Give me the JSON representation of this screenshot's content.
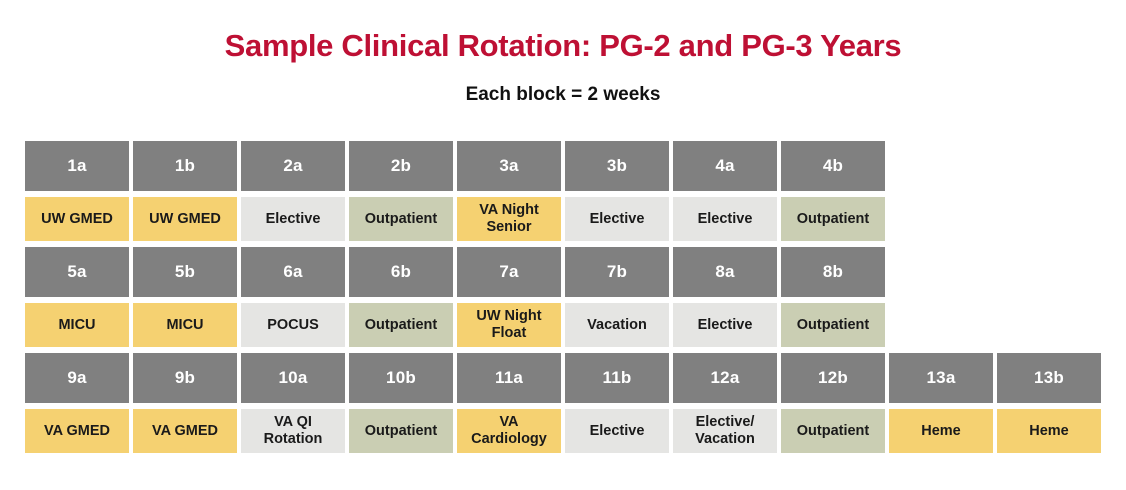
{
  "colors": {
    "title": "#BE1034",
    "subtitle_text": "#111111",
    "header_bg": "#808080",
    "header_text": "#FFFFFF",
    "cell_text": "#1A1A1A",
    "cell_fill": {
      "yellow": "#F5D171",
      "gray": "#E5E5E3",
      "green": "#CACEB3"
    }
  },
  "chart_data": {
    "type": "table",
    "title": "Sample Clinical Rotation: PG-2 and PG-3 Years",
    "subtitle": "Each block = 2 weeks",
    "legend_position": "none",
    "rows": [
      [
        {
          "block": "1a",
          "rotation": "UW GMED",
          "color": "yellow"
        },
        {
          "block": "1b",
          "rotation": "UW GMED",
          "color": "yellow"
        },
        {
          "block": "2a",
          "rotation": "Elective",
          "color": "gray"
        },
        {
          "block": "2b",
          "rotation": "Outpatient",
          "color": "green"
        },
        {
          "block": "3a",
          "rotation": "VA Night Senior",
          "color": "yellow"
        },
        {
          "block": "3b",
          "rotation": "Elective",
          "color": "gray"
        },
        {
          "block": "4a",
          "rotation": "Elective",
          "color": "gray"
        },
        {
          "block": "4b",
          "rotation": "Outpatient",
          "color": "green"
        }
      ],
      [
        {
          "block": "5a",
          "rotation": "MICU",
          "color": "yellow"
        },
        {
          "block": "5b",
          "rotation": "MICU",
          "color": "yellow"
        },
        {
          "block": "6a",
          "rotation": "POCUS",
          "color": "gray"
        },
        {
          "block": "6b",
          "rotation": "Outpatient",
          "color": "green"
        },
        {
          "block": "7a",
          "rotation": "UW Night Float",
          "color": "yellow"
        },
        {
          "block": "7b",
          "rotation": "Vacation",
          "color": "gray"
        },
        {
          "block": "8a",
          "rotation": "Elective",
          "color": "gray"
        },
        {
          "block": "8b",
          "rotation": "Outpatient",
          "color": "green"
        }
      ],
      [
        {
          "block": "9a",
          "rotation": "VA GMED",
          "color": "yellow"
        },
        {
          "block": "9b",
          "rotation": "VA GMED",
          "color": "yellow"
        },
        {
          "block": "10a",
          "rotation": "VA QI Rotation",
          "color": "gray"
        },
        {
          "block": "10b",
          "rotation": "Outpatient",
          "color": "green"
        },
        {
          "block": "11a",
          "rotation": "VA Cardiology",
          "color": "yellow"
        },
        {
          "block": "11b",
          "rotation": "Elective",
          "color": "gray"
        },
        {
          "block": "12a",
          "rotation": "Elective/Vacation",
          "color": "gray"
        },
        {
          "block": "12b",
          "rotation": "Outpatient",
          "color": "green"
        },
        {
          "block": "13a",
          "rotation": "Heme",
          "color": "yellow"
        },
        {
          "block": "13b",
          "rotation": "Heme",
          "color": "yellow"
        }
      ]
    ]
  }
}
